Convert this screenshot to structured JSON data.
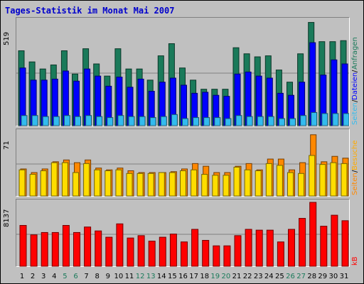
{
  "window": {
    "title": "Tages-Statistik im Monat Mai 2007"
  },
  "colors": {
    "background": "#c0c0c0",
    "title": "#0000cc",
    "anfragen": "#1a7a5a",
    "dateien": "#0000ff",
    "seiten": "#33bbee",
    "besuche": "#ff8800",
    "seiten2": "#ffdd00",
    "kb": "#ff0000",
    "weekend_label": "#1a7a5a",
    "label": "#000000"
  },
  "chart_data": [
    {
      "type": "bar",
      "title": "Tages-Statistik im Monat Mai 2007",
      "panel": "hits",
      "max_label": "519",
      "ylim": [
        0,
        519
      ],
      "x": [
        1,
        2,
        3,
        4,
        5,
        6,
        7,
        8,
        9,
        10,
        11,
        12,
        13,
        14,
        15,
        16,
        17,
        18,
        19,
        20,
        21,
        22,
        23,
        24,
        25,
        26,
        27,
        28,
        29,
        30,
        31
      ],
      "x_weekend": [
        5,
        6,
        12,
        13,
        19,
        20,
        26,
        27
      ],
      "legend": [
        "Seiten",
        "Dateien",
        "Anfragen"
      ],
      "series": [
        {
          "name": "Anfragen",
          "values": [
            370,
            315,
            280,
            300,
            370,
            255,
            380,
            305,
            245,
            380,
            280,
            280,
            225,
            345,
            405,
            285,
            225,
            180,
            180,
            180,
            385,
            355,
            340,
            345,
            275,
            215,
            355,
            510,
            415,
            415,
            420
          ]
        },
        {
          "name": "Dateien",
          "values": [
            285,
            225,
            225,
            230,
            270,
            220,
            280,
            245,
            195,
            240,
            190,
            230,
            170,
            215,
            235,
            200,
            160,
            165,
            150,
            145,
            255,
            265,
            245,
            235,
            160,
            150,
            215,
            410,
            250,
            325,
            305
          ]
        },
        {
          "name": "Seiten",
          "values": [
            50,
            50,
            45,
            45,
            50,
            45,
            50,
            45,
            40,
            50,
            45,
            45,
            40,
            45,
            55,
            35,
            40,
            40,
            40,
            35,
            50,
            45,
            45,
            45,
            35,
            35,
            50,
            65,
            60,
            60,
            60
          ]
        }
      ]
    },
    {
      "type": "bar",
      "panel": "visits",
      "max_label": "71",
      "ylim": [
        0,
        71
      ],
      "x": [
        1,
        2,
        3,
        4,
        5,
        6,
        7,
        8,
        9,
        10,
        11,
        12,
        13,
        14,
        15,
        16,
        17,
        18,
        19,
        20,
        21,
        22,
        23,
        24,
        25,
        26,
        27,
        28,
        29,
        30,
        31
      ],
      "legend": [
        "Seiten",
        "Besuche"
      ],
      "series": [
        {
          "name": "Besuche",
          "values": [
            30,
            26,
            30,
            38,
            40,
            37,
            40,
            31,
            29,
            31,
            28,
            26,
            26,
            26,
            27,
            30,
            36,
            33,
            26,
            26,
            33,
            36,
            29,
            41,
            41,
            29,
            37,
            68,
            38,
            44,
            42
          ]
        },
        {
          "name": "Seiten",
          "values": [
            29,
            24,
            28,
            37,
            37,
            26,
            36,
            29,
            28,
            29,
            25,
            25,
            25,
            26,
            26,
            28,
            29,
            24,
            23,
            23,
            32,
            29,
            28,
            36,
            34,
            26,
            25,
            45,
            35,
            37,
            36
          ]
        }
      ]
    },
    {
      "type": "bar",
      "panel": "kb",
      "max_label": "8137",
      "ylim": [
        0,
        8137
      ],
      "x": [
        1,
        2,
        3,
        4,
        5,
        6,
        7,
        8,
        9,
        10,
        11,
        12,
        13,
        14,
        15,
        16,
        17,
        18,
        19,
        20,
        21,
        22,
        23,
        24,
        25,
        26,
        27,
        28,
        29,
        30,
        31
      ],
      "legend": [
        "kB"
      ],
      "series": [
        {
          "name": "kB",
          "values": [
            5200,
            4000,
            4300,
            4300,
            5200,
            4300,
            5000,
            4500,
            3700,
            5400,
            3600,
            3900,
            3200,
            3700,
            4100,
            3100,
            4700,
            3300,
            2600,
            2600,
            3900,
            4700,
            4600,
            4600,
            3100,
            4700,
            6100,
            8137,
            5100,
            6500,
            5800
          ]
        }
      ]
    }
  ],
  "x_labels": [
    "1",
    "2",
    "3",
    "4",
    "5",
    "6",
    "7",
    "8",
    "9",
    "10",
    "11",
    "12",
    "13",
    "14",
    "15",
    "16",
    "17",
    "18",
    "19",
    "20",
    "21",
    "22",
    "23",
    "24",
    "25",
    "26",
    "27",
    "28",
    "29",
    "30",
    "31"
  ]
}
